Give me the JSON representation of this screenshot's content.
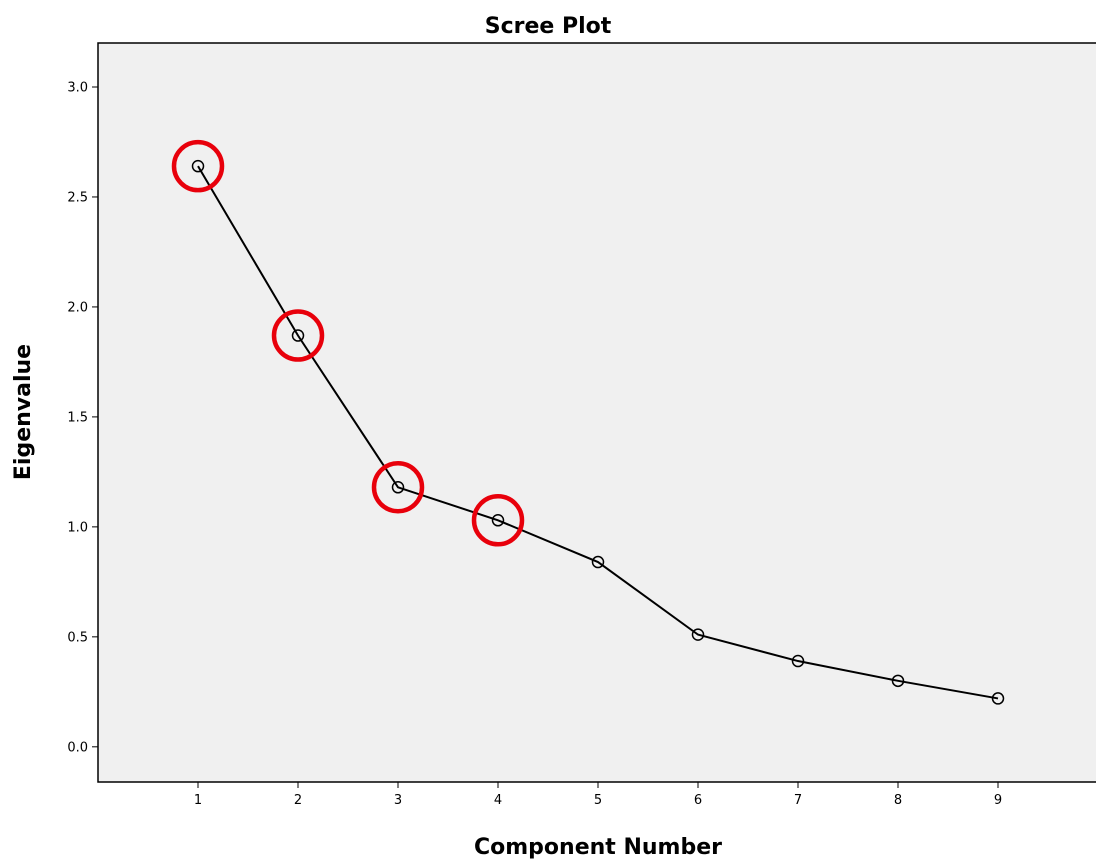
{
  "chart_data": {
    "type": "line",
    "title": "Scree Plot",
    "xlabel": "Component Number",
    "ylabel": "Eigenvalue",
    "x": [
      1,
      2,
      3,
      4,
      5,
      6,
      7,
      8,
      9
    ],
    "series": [
      {
        "values": [
          2.64,
          1.87,
          1.18,
          1.03,
          0.84,
          0.51,
          0.39,
          0.3,
          0.22
        ]
      }
    ],
    "xlim": [
      0,
      10
    ],
    "ylim": [
      -0.16,
      3.2
    ],
    "x_ticks": [
      "1",
      "2",
      "3",
      "4",
      "5",
      "6",
      "7",
      "8",
      "9"
    ],
    "y_ticks": [
      "0.0",
      "0.5",
      "1.0",
      "1.5",
      "2.0",
      "2.5",
      "3.0"
    ],
    "highlighted_components": [
      1,
      2,
      3,
      4
    ],
    "grid": false,
    "colors": {
      "plot_background": "#f0f0f0",
      "line": "#000000",
      "highlight": "#e8000b"
    }
  }
}
